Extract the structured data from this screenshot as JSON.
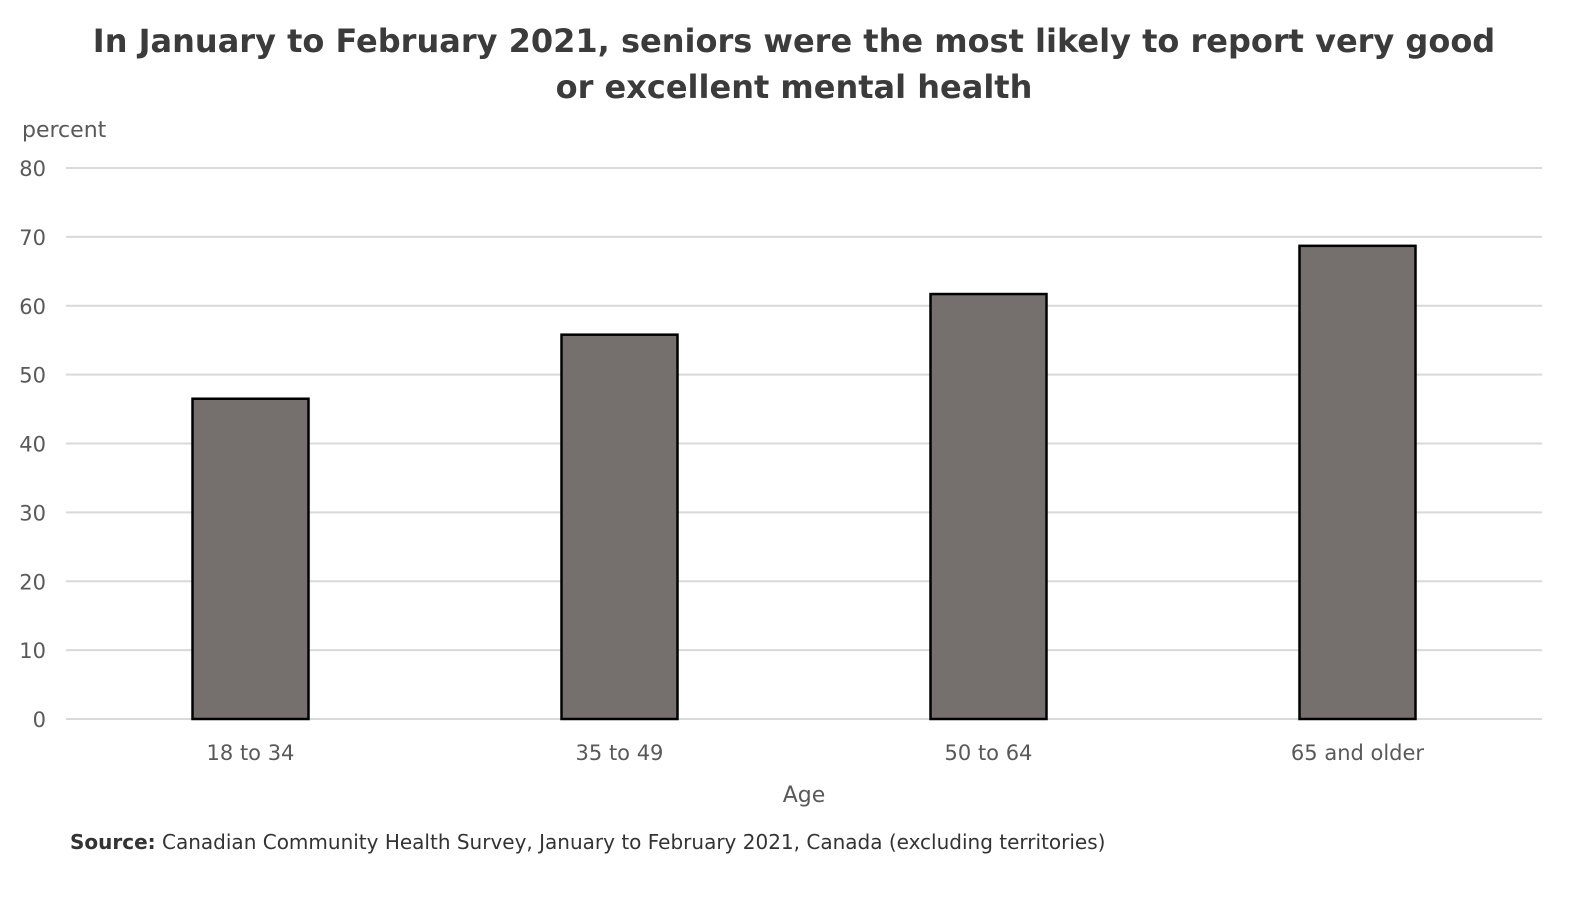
{
  "chart_data": {
    "type": "bar",
    "title_lines": [
      "In January to February 2021, seniors were the most likely to report very good",
      "or excellent mental health"
    ],
    "ylabel": "percent",
    "xlabel": "Age",
    "categories": [
      "18 to 34",
      "35 to 49",
      "50 to 64",
      "65 and older"
    ],
    "values": [
      46.5,
      55.8,
      61.7,
      68.7
    ],
    "ylim": [
      0,
      80
    ],
    "yticks": [
      0,
      10,
      20,
      30,
      40,
      50,
      60,
      70,
      80
    ],
    "grid": true,
    "legend": "none"
  },
  "source": {
    "label": "Source:",
    "text": "Canadian Community Health Survey, January to February 2021, Canada (excluding territories)"
  },
  "colors": {
    "bar_fill": "#756f6e",
    "bar_stroke": "#000000",
    "grid": "#d9d9d9",
    "text": "#595959"
  }
}
